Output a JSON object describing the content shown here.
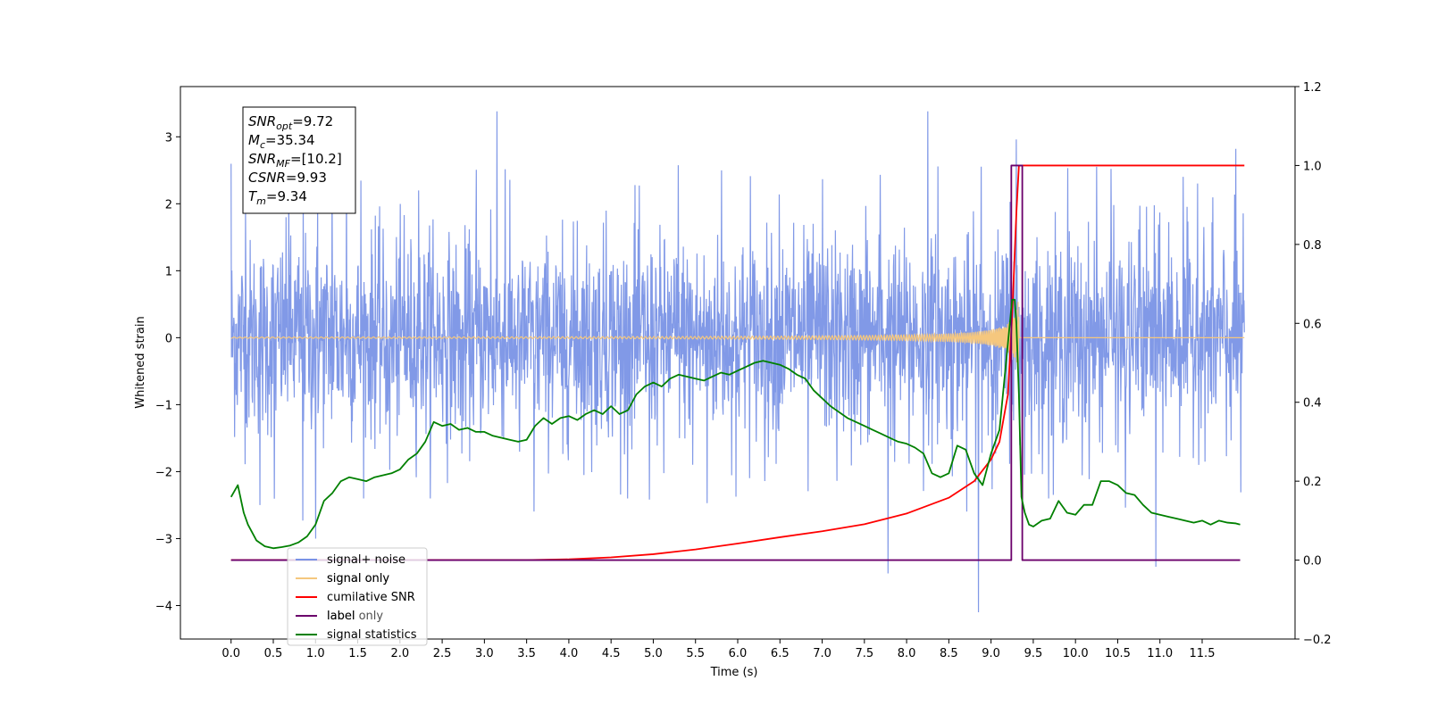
{
  "chart_data": {
    "type": "line",
    "xlabel": "Time (s)",
    "ylabel": "Whitened strain",
    "xlim": [
      -0.6,
      12.6
    ],
    "ylim": [
      -4.5,
      3.75
    ],
    "ylim_right": [
      -0.2,
      1.2
    ],
    "x_ticks": [
      "0.0",
      "0.5",
      "1.0",
      "1.5",
      "2.0",
      "2.5",
      "3.0",
      "3.5",
      "4.0",
      "4.5",
      "5.0",
      "5.5",
      "6.0",
      "6.5",
      "7.0",
      "7.5",
      "8.0",
      "8.5",
      "9.0",
      "9.5",
      "10.0",
      "10.5",
      "11.0",
      "11.5"
    ],
    "y_ticks_left": [
      "3",
      "2",
      "1",
      "0",
      "−1",
      "−2",
      "−3",
      "−4"
    ],
    "y_ticks_right": [
      "1.2",
      "1.0",
      "0.8",
      "0.6",
      "0.4",
      "0.2",
      "0.0",
      "−0.2"
    ],
    "info_box": [
      {
        "sym": "SNR",
        "sub": "opt",
        "value": "=9.72"
      },
      {
        "sym": "M",
        "sub": "c",
        "value": "=35.34"
      },
      {
        "sym": "SNR",
        "sub": "MF",
        "value": "=[10.2]"
      },
      {
        "sym": "CSNR",
        "sub": "",
        "value": "=9.93"
      },
      {
        "sym": "T",
        "sub": "m",
        "value": "=9.34"
      }
    ],
    "legend": {
      "location": "lower-left",
      "entries": [
        {
          "label": "signal+ noise",
          "color": "#7a93e6"
        },
        {
          "label": "signal only",
          "color": "#f5c77e"
        },
        {
          "label": "cumilative SNR",
          "color": "#ff0000"
        },
        {
          "label": "label",
          "color": "#6b006b"
        },
        {
          "label": "signal statistics",
          "color": "#008000"
        }
      ],
      "ghost_labels": [
        "signal only",
        "label only"
      ]
    },
    "series": [
      {
        "name": "signal+ noise",
        "axis": "left",
        "color": "#7a93e6",
        "noise_std": 0.72,
        "extremes": [
          [
            3.15,
            3.38
          ],
          [
            8.25,
            3.38
          ],
          [
            7.78,
            -3.52
          ],
          [
            8.85,
            -4.1
          ],
          [
            10.95,
            -3.42
          ],
          [
            11.9,
            2.82
          ],
          [
            9.3,
            2.96
          ],
          [
            1.0,
            -3.0
          ],
          [
            0.85,
            -2.73
          ]
        ],
        "x_range": [
          0.0,
          12.0
        ]
      },
      {
        "name": "signal only",
        "axis": "left",
        "color": "#f5c77e",
        "chirp_end": 9.33,
        "chirp_peak_amp": 0.62
      },
      {
        "name": "cumilative SNR",
        "axis": "right",
        "color": "#ff0000",
        "x": [
          0.0,
          3.5,
          4.0,
          4.5,
          5.0,
          5.5,
          6.0,
          6.5,
          7.0,
          7.5,
          8.0,
          8.5,
          8.8,
          9.0,
          9.1,
          9.2,
          9.25,
          9.3,
          9.33,
          9.4,
          10.0,
          11.0,
          12.0
        ],
        "y": [
          0.0,
          0.0,
          0.002,
          0.007,
          0.015,
          0.027,
          0.042,
          0.058,
          0.073,
          0.091,
          0.118,
          0.158,
          0.2,
          0.255,
          0.3,
          0.42,
          0.62,
          0.88,
          1.0,
          1.0,
          1.0,
          1.0,
          1.0
        ]
      },
      {
        "name": "label",
        "axis": "right",
        "color": "#6b006b",
        "x": [
          0.0,
          9.24,
          9.24,
          9.37,
          9.37,
          11.95
        ],
        "y": [
          0.0,
          0.0,
          1.0,
          1.0,
          0.0,
          0.0
        ]
      },
      {
        "name": "signal statistics",
        "axis": "right",
        "color": "#008000",
        "x": [
          0.0,
          0.08,
          0.15,
          0.2,
          0.3,
          0.4,
          0.5,
          0.6,
          0.7,
          0.8,
          0.9,
          1.0,
          1.1,
          1.2,
          1.3,
          1.4,
          1.5,
          1.6,
          1.7,
          1.8,
          1.9,
          2.0,
          2.1,
          2.2,
          2.3,
          2.4,
          2.5,
          2.6,
          2.7,
          2.8,
          2.9,
          3.0,
          3.1,
          3.2,
          3.3,
          3.4,
          3.5,
          3.6,
          3.7,
          3.8,
          3.9,
          4.0,
          4.1,
          4.2,
          4.3,
          4.4,
          4.5,
          4.6,
          4.7,
          4.8,
          4.9,
          5.0,
          5.1,
          5.2,
          5.3,
          5.4,
          5.5,
          5.6,
          5.7,
          5.8,
          5.9,
          6.0,
          6.1,
          6.2,
          6.3,
          6.4,
          6.5,
          6.6,
          6.7,
          6.8,
          6.9,
          7.0,
          7.1,
          7.2,
          7.3,
          7.4,
          7.5,
          7.6,
          7.7,
          7.8,
          7.9,
          8.0,
          8.1,
          8.2,
          8.3,
          8.4,
          8.5,
          8.6,
          8.7,
          8.8,
          8.9,
          9.0,
          9.1,
          9.2,
          9.25,
          9.28,
          9.3,
          9.33,
          9.36,
          9.4,
          9.45,
          9.5,
          9.6,
          9.7,
          9.8,
          9.9,
          10.0,
          10.1,
          10.2,
          10.3,
          10.4,
          10.5,
          10.6,
          10.7,
          10.8,
          10.9,
          11.0,
          11.1,
          11.2,
          11.3,
          11.4,
          11.5,
          11.6,
          11.7,
          11.8,
          11.9,
          11.95
        ],
        "y": [
          0.16,
          0.19,
          0.12,
          0.09,
          0.05,
          0.035,
          0.03,
          0.033,
          0.037,
          0.045,
          0.06,
          0.09,
          0.15,
          0.17,
          0.2,
          0.21,
          0.205,
          0.2,
          0.21,
          0.215,
          0.22,
          0.23,
          0.255,
          0.27,
          0.3,
          0.35,
          0.34,
          0.345,
          0.33,
          0.335,
          0.325,
          0.325,
          0.315,
          0.31,
          0.305,
          0.3,
          0.305,
          0.34,
          0.36,
          0.345,
          0.36,
          0.365,
          0.355,
          0.37,
          0.38,
          0.37,
          0.39,
          0.37,
          0.38,
          0.42,
          0.44,
          0.45,
          0.44,
          0.46,
          0.47,
          0.465,
          0.46,
          0.455,
          0.465,
          0.475,
          0.47,
          0.48,
          0.49,
          0.5,
          0.505,
          0.5,
          0.495,
          0.485,
          0.47,
          0.46,
          0.43,
          0.41,
          0.39,
          0.375,
          0.36,
          0.35,
          0.34,
          0.33,
          0.32,
          0.31,
          0.3,
          0.295,
          0.285,
          0.27,
          0.22,
          0.21,
          0.22,
          0.29,
          0.28,
          0.22,
          0.19,
          0.27,
          0.33,
          0.55,
          0.66,
          0.66,
          0.6,
          0.42,
          0.16,
          0.12,
          0.09,
          0.085,
          0.1,
          0.105,
          0.15,
          0.12,
          0.115,
          0.14,
          0.14,
          0.2,
          0.2,
          0.19,
          0.17,
          0.165,
          0.14,
          0.12,
          0.115,
          0.11,
          0.105,
          0.1,
          0.095,
          0.1,
          0.09,
          0.1,
          0.095,
          0.093,
          0.09
        ]
      }
    ]
  }
}
